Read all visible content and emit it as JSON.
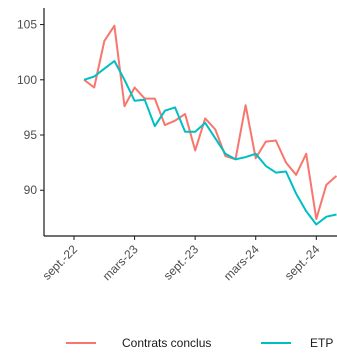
{
  "colors": {
    "contrats": "#f8766d",
    "etp": "#00bfc4",
    "axis": "#1a1a1a",
    "tick_text": "#4d4d4d",
    "background": "#ffffff"
  },
  "chart_data": {
    "type": "line",
    "title": "",
    "xlabel": "",
    "ylabel": "",
    "x_ticks": [
      "sept.-22",
      "mars-23",
      "sept.-23",
      "mars-24",
      "sept.-24"
    ],
    "y_ticks": [
      "90",
      "95",
      "100",
      "105"
    ],
    "ylim": [
      86.4,
      106.5
    ],
    "xlim": [
      "2022-08",
      "2024-10"
    ],
    "grid": false,
    "legend_position": "bottom",
    "series": [
      {
        "name": "Contrats conclus",
        "color_key": "contrats",
        "points": [
          {
            "x": "2022-10",
            "y": 100.0
          },
          {
            "x": "2022-11",
            "y": 99.3
          },
          {
            "x": "2022-12",
            "y": 103.5
          },
          {
            "x": "2023-01",
            "y": 104.9
          },
          {
            "x": "2023-02",
            "y": 97.6
          },
          {
            "x": "2023-03",
            "y": 99.3
          },
          {
            "x": "2023-04",
            "y": 98.3
          },
          {
            "x": "2023-05",
            "y": 98.3
          },
          {
            "x": "2023-06",
            "y": 95.9
          },
          {
            "x": "2023-07",
            "y": 96.3
          },
          {
            "x": "2023-08",
            "y": 96.9
          },
          {
            "x": "2023-09",
            "y": 93.6
          },
          {
            "x": "2023-10",
            "y": 96.5
          },
          {
            "x": "2023-11",
            "y": 95.5
          },
          {
            "x": "2023-12",
            "y": 93.1
          },
          {
            "x": "2024-01",
            "y": 92.8
          },
          {
            "x": "2024-02",
            "y": 97.7
          },
          {
            "x": "2024-03",
            "y": 92.9
          },
          {
            "x": "2024-04",
            "y": 94.4
          },
          {
            "x": "2024-05",
            "y": 94.5
          },
          {
            "x": "2024-06",
            "y": 92.5
          },
          {
            "x": "2024-07",
            "y": 91.4
          },
          {
            "x": "2024-08",
            "y": 93.3
          },
          {
            "x": "2024-09",
            "y": 87.4
          },
          {
            "x": "2024-10",
            "y": 90.5
          },
          {
            "x": "2024-11",
            "y": 91.3
          }
        ]
      },
      {
        "name": "ETP",
        "color_key": "etp",
        "points": [
          {
            "x": "2022-10",
            "y": 100.0
          },
          {
            "x": "2022-11",
            "y": 100.3
          },
          {
            "x": "2022-12",
            "y": 101.0
          },
          {
            "x": "2023-01",
            "y": 101.7
          },
          {
            "x": "2023-02",
            "y": 100.0
          },
          {
            "x": "2023-03",
            "y": 98.1
          },
          {
            "x": "2023-04",
            "y": 98.2
          },
          {
            "x": "2023-05",
            "y": 95.8
          },
          {
            "x": "2023-06",
            "y": 97.2
          },
          {
            "x": "2023-07",
            "y": 97.5
          },
          {
            "x": "2023-08",
            "y": 95.3
          },
          {
            "x": "2023-09",
            "y": 95.3
          },
          {
            "x": "2023-10",
            "y": 96.1
          },
          {
            "x": "2023-11",
            "y": 94.7
          },
          {
            "x": "2023-12",
            "y": 93.3
          },
          {
            "x": "2024-01",
            "y": 92.8
          },
          {
            "x": "2024-02",
            "y": 93.0
          },
          {
            "x": "2024-03",
            "y": 93.3
          },
          {
            "x": "2024-04",
            "y": 92.2
          },
          {
            "x": "2024-05",
            "y": 91.6
          },
          {
            "x": "2024-06",
            "y": 91.7
          },
          {
            "x": "2024-07",
            "y": 89.7
          },
          {
            "x": "2024-08",
            "y": 88.1
          },
          {
            "x": "2024-09",
            "y": 86.9
          },
          {
            "x": "2024-10",
            "y": 87.6
          },
          {
            "x": "2024-11",
            "y": 87.8
          }
        ]
      }
    ]
  },
  "legend": {
    "items": [
      "Contrats conclus",
      "ETP"
    ]
  }
}
